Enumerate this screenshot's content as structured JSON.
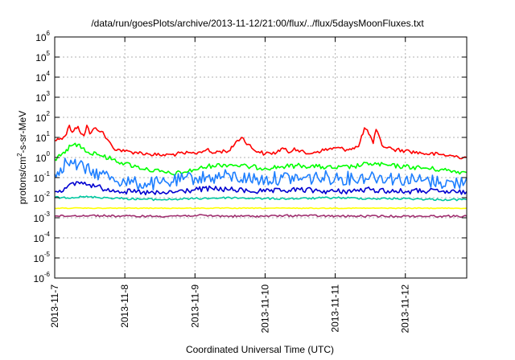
{
  "title": "/data/run/goesPlots/archive/2013-11-12/21:00/flux/../flux/5daysMoonFluxes.txt",
  "xlabel": "Coordinated Universal Time (UTC)",
  "ylabel_parts": {
    "pre": "protons/cm",
    "sup": "2",
    "post": "-s-sr-MeV"
  },
  "chart_data": {
    "type": "line",
    "title": "/data/run/goesPlots/archive/2013-11-12/21:00/flux/../flux/5daysMoonFluxes.txt",
    "xlabel": "Coordinated Universal Time (UTC)",
    "ylabel": "protons/cm2-s-sr-MeV",
    "yscale": "log",
    "ylim": [
      1e-06,
      1000000.0
    ],
    "xlim": [
      "2013-11-07 00:00",
      "2013-11-12 21:00"
    ],
    "grid": true,
    "x_ticks": [
      "2013-11-7",
      "2013-11-8",
      "2013-11-9",
      "2013-11-10",
      "2013-11-11",
      "2013-11-12"
    ],
    "y_ticks": [
      {
        "value": 1e-06,
        "base": "10",
        "exp": "-6"
      },
      {
        "value": 1e-05,
        "base": "10",
        "exp": "-5"
      },
      {
        "value": 0.0001,
        "base": "10",
        "exp": "-4"
      },
      {
        "value": 0.001,
        "base": "10",
        "exp": "-3"
      },
      {
        "value": 0.01,
        "base": "10",
        "exp": "-2"
      },
      {
        "value": 0.1,
        "base": "10",
        "exp": "-1"
      },
      {
        "value": 1,
        "base": "10",
        "exp": "0"
      },
      {
        "value": 10,
        "base": "10",
        "exp": "1"
      },
      {
        "value": 100,
        "base": "10",
        "exp": "2"
      },
      {
        "value": 1000,
        "base": "10",
        "exp": "3"
      },
      {
        "value": 10000,
        "base": "10",
        "exp": "4"
      },
      {
        "value": 100000,
        "base": "10",
        "exp": "5"
      },
      {
        "value": 1000000,
        "base": "10",
        "exp": "6"
      }
    ],
    "series": [
      {
        "color": "#ff0000",
        "x": [
          "2013-11-07 00:00",
          "2013-11-07 02:00",
          "2013-11-07 04:00",
          "2013-11-07 05:00",
          "2013-11-07 06:00",
          "2013-11-07 07:00",
          "2013-11-07 08:00",
          "2013-11-07 09:00",
          "2013-11-07 10:00",
          "2013-11-07 11:00",
          "2013-11-07 12:00",
          "2013-11-07 14:00",
          "2013-11-07 16:00",
          "2013-11-07 18:00",
          "2013-11-07 20:00",
          "2013-11-08 00:00",
          "2013-11-08 04:00",
          "2013-11-08 08:00",
          "2013-11-08 12:00",
          "2013-11-08 16:00",
          "2013-11-08 20:00",
          "2013-11-09 00:00",
          "2013-11-09 04:00",
          "2013-11-09 06:00",
          "2013-11-09 08:00",
          "2013-11-09 12:00",
          "2013-11-09 14:00",
          "2013-11-09 16:00",
          "2013-11-09 20:00",
          "2013-11-10 00:00",
          "2013-11-10 04:00",
          "2013-11-10 06:00",
          "2013-11-10 08:00",
          "2013-11-10 10:00",
          "2013-11-10 14:00",
          "2013-11-10 18:00",
          "2013-11-11 00:00",
          "2013-11-11 04:00",
          "2013-11-11 06:00",
          "2013-11-11 08:00",
          "2013-11-11 10:00",
          "2013-11-11 12:00",
          "2013-11-11 13:00",
          "2013-11-11 14:00",
          "2013-11-11 16:00",
          "2013-11-11 20:00",
          "2013-11-12 00:00",
          "2013-11-12 06:00",
          "2013-11-12 12:00",
          "2013-11-12 18:00",
          "2013-11-12 21:00"
        ],
        "y": [
          7,
          9,
          14,
          40,
          18,
          30,
          35,
          15,
          12,
          40,
          15,
          30,
          20,
          8,
          3,
          2,
          1.8,
          1.5,
          1.3,
          1.4,
          1.6,
          1.6,
          2.5,
          1.6,
          2,
          2.2,
          6,
          10,
          2.5,
          1.5,
          1.8,
          3,
          1.7,
          3,
          1.5,
          2,
          3,
          2.5,
          3,
          3.5,
          30,
          12,
          5,
          25,
          4,
          2.5,
          2.2,
          1.6,
          1.4,
          1.1,
          1.0
        ]
      },
      {
        "color": "#00ff00",
        "x": [
          "2013-11-07 00:00",
          "2013-11-07 02:00",
          "2013-11-07 04:00",
          "2013-11-07 06:00",
          "2013-11-07 08:00",
          "2013-11-07 10:00",
          "2013-11-07 12:00",
          "2013-11-07 14:00",
          "2013-11-07 16:00",
          "2013-11-07 20:00",
          "2013-11-08 00:00",
          "2013-11-08 04:00",
          "2013-11-08 08:00",
          "2013-11-08 12:00",
          "2013-11-08 16:00",
          "2013-11-08 20:00",
          "2013-11-09 00:00",
          "2013-11-09 06:00",
          "2013-11-09 12:00",
          "2013-11-09 18:00",
          "2013-11-10 00:00",
          "2013-11-10 06:00",
          "2013-11-10 12:00",
          "2013-11-10 18:00",
          "2013-11-11 00:00",
          "2013-11-11 06:00",
          "2013-11-11 12:00",
          "2013-11-11 18:00",
          "2013-11-12 00:00",
          "2013-11-12 06:00",
          "2013-11-12 12:00",
          "2013-11-12 18:00",
          "2013-11-12 21:00"
        ],
        "y": [
          0.8,
          1.2,
          2.5,
          4,
          4.5,
          3,
          1.5,
          1.8,
          1.2,
          0.8,
          0.5,
          0.35,
          0.25,
          0.2,
          0.15,
          0.18,
          0.25,
          0.4,
          0.45,
          0.35,
          0.3,
          0.35,
          0.4,
          0.35,
          0.3,
          0.35,
          0.5,
          0.4,
          0.35,
          0.3,
          0.25,
          0.2,
          0.18
        ]
      },
      {
        "color": "#1e7fff",
        "x": [
          "2013-11-07 00:00",
          "2013-11-07 02:00",
          "2013-11-07 04:00",
          "2013-11-07 06:00",
          "2013-11-07 08:00",
          "2013-11-07 10:00",
          "2013-11-07 12:00",
          "2013-11-07 16:00",
          "2013-11-07 20:00",
          "2013-11-08 00:00",
          "2013-11-08 04:00",
          "2013-11-08 08:00",
          "2013-11-08 12:00",
          "2013-11-08 16:00",
          "2013-11-08 20:00",
          "2013-11-09 00:00",
          "2013-11-09 06:00",
          "2013-11-09 12:00",
          "2013-11-09 18:00",
          "2013-11-10 00:00",
          "2013-11-10 06:00",
          "2013-11-10 12:00",
          "2013-11-10 18:00",
          "2013-11-11 00:00",
          "2013-11-11 06:00",
          "2013-11-11 12:00",
          "2013-11-11 18:00",
          "2013-11-12 00:00",
          "2013-11-12 06:00",
          "2013-11-12 12:00",
          "2013-11-12 18:00",
          "2013-11-12 21:00"
        ],
        "y": [
          0.15,
          0.3,
          0.6,
          0.5,
          0.4,
          0.3,
          0.2,
          0.15,
          0.1,
          0.06,
          0.05,
          0.05,
          0.05,
          0.06,
          0.08,
          0.1,
          0.1,
          0.12,
          0.09,
          0.08,
          0.1,
          0.09,
          0.1,
          0.1,
          0.09,
          0.12,
          0.1,
          0.08,
          0.07,
          0.06,
          0.05,
          0.1
        ]
      },
      {
        "color": "#0000d0",
        "x": [
          "2013-11-07 00:00",
          "2013-11-07 04:00",
          "2013-11-07 08:00",
          "2013-11-07 12:00",
          "2013-11-07 16:00",
          "2013-11-07 20:00",
          "2013-11-08 00:00",
          "2013-11-08 06:00",
          "2013-11-08 12:00",
          "2013-11-08 18:00",
          "2013-11-09 00:00",
          "2013-11-09 06:00",
          "2013-11-09 12:00",
          "2013-11-09 18:00",
          "2013-11-10 00:00",
          "2013-11-10 06:00",
          "2013-11-10 12:00",
          "2013-11-10 18:00",
          "2013-11-11 00:00",
          "2013-11-11 06:00",
          "2013-11-11 12:00",
          "2013-11-11 18:00",
          "2013-11-12 00:00",
          "2013-11-12 06:00",
          "2013-11-12 12:00",
          "2013-11-12 18:00",
          "2013-11-12 21:00"
        ],
        "y": [
          0.02,
          0.03,
          0.06,
          0.045,
          0.03,
          0.025,
          0.02,
          0.018,
          0.016,
          0.02,
          0.025,
          0.028,
          0.025,
          0.022,
          0.02,
          0.022,
          0.025,
          0.022,
          0.02,
          0.022,
          0.025,
          0.022,
          0.02,
          0.022,
          0.02,
          0.018,
          0.02
        ]
      },
      {
        "color": "#00c8a0",
        "x": [
          "2013-11-07 00:00",
          "2013-11-07 12:00",
          "2013-11-08 00:00",
          "2013-11-08 12:00",
          "2013-11-09 00:00",
          "2013-11-09 12:00",
          "2013-11-10 00:00",
          "2013-11-10 12:00",
          "2013-11-11 00:00",
          "2013-11-11 12:00",
          "2013-11-12 00:00",
          "2013-11-12 12:00",
          "2013-11-12 21:00"
        ],
        "y": [
          0.01,
          0.011,
          0.009,
          0.008,
          0.009,
          0.01,
          0.009,
          0.009,
          0.01,
          0.009,
          0.009,
          0.008,
          0.008
        ]
      },
      {
        "color": "#ffff00",
        "x": [
          "2013-11-07 00:00",
          "2013-11-07 12:00",
          "2013-11-08 00:00",
          "2013-11-08 12:00",
          "2013-11-09 00:00",
          "2013-11-09 12:00",
          "2013-11-10 00:00",
          "2013-11-10 12:00",
          "2013-11-11 00:00",
          "2013-11-11 12:00",
          "2013-11-12 00:00",
          "2013-11-12 12:00",
          "2013-11-12 21:00"
        ],
        "y": [
          0.003,
          0.003,
          0.003,
          0.003,
          0.003,
          0.003,
          0.003,
          0.003,
          0.003,
          0.003,
          0.003,
          0.003,
          0.003
        ]
      },
      {
        "color": "#a03070",
        "x": [
          "2013-11-07 00:00",
          "2013-11-07 12:00",
          "2013-11-08 00:00",
          "2013-11-08 12:00",
          "2013-11-09 00:00",
          "2013-11-09 12:00",
          "2013-11-10 00:00",
          "2013-11-10 12:00",
          "2013-11-11 00:00",
          "2013-11-11 12:00",
          "2013-11-12 00:00",
          "2013-11-12 12:00",
          "2013-11-12 21:00"
        ],
        "y": [
          0.0012,
          0.0013,
          0.0012,
          0.0012,
          0.0013,
          0.0012,
          0.0012,
          0.0013,
          0.0012,
          0.0012,
          0.0012,
          0.0012,
          0.0012
        ]
      }
    ]
  }
}
